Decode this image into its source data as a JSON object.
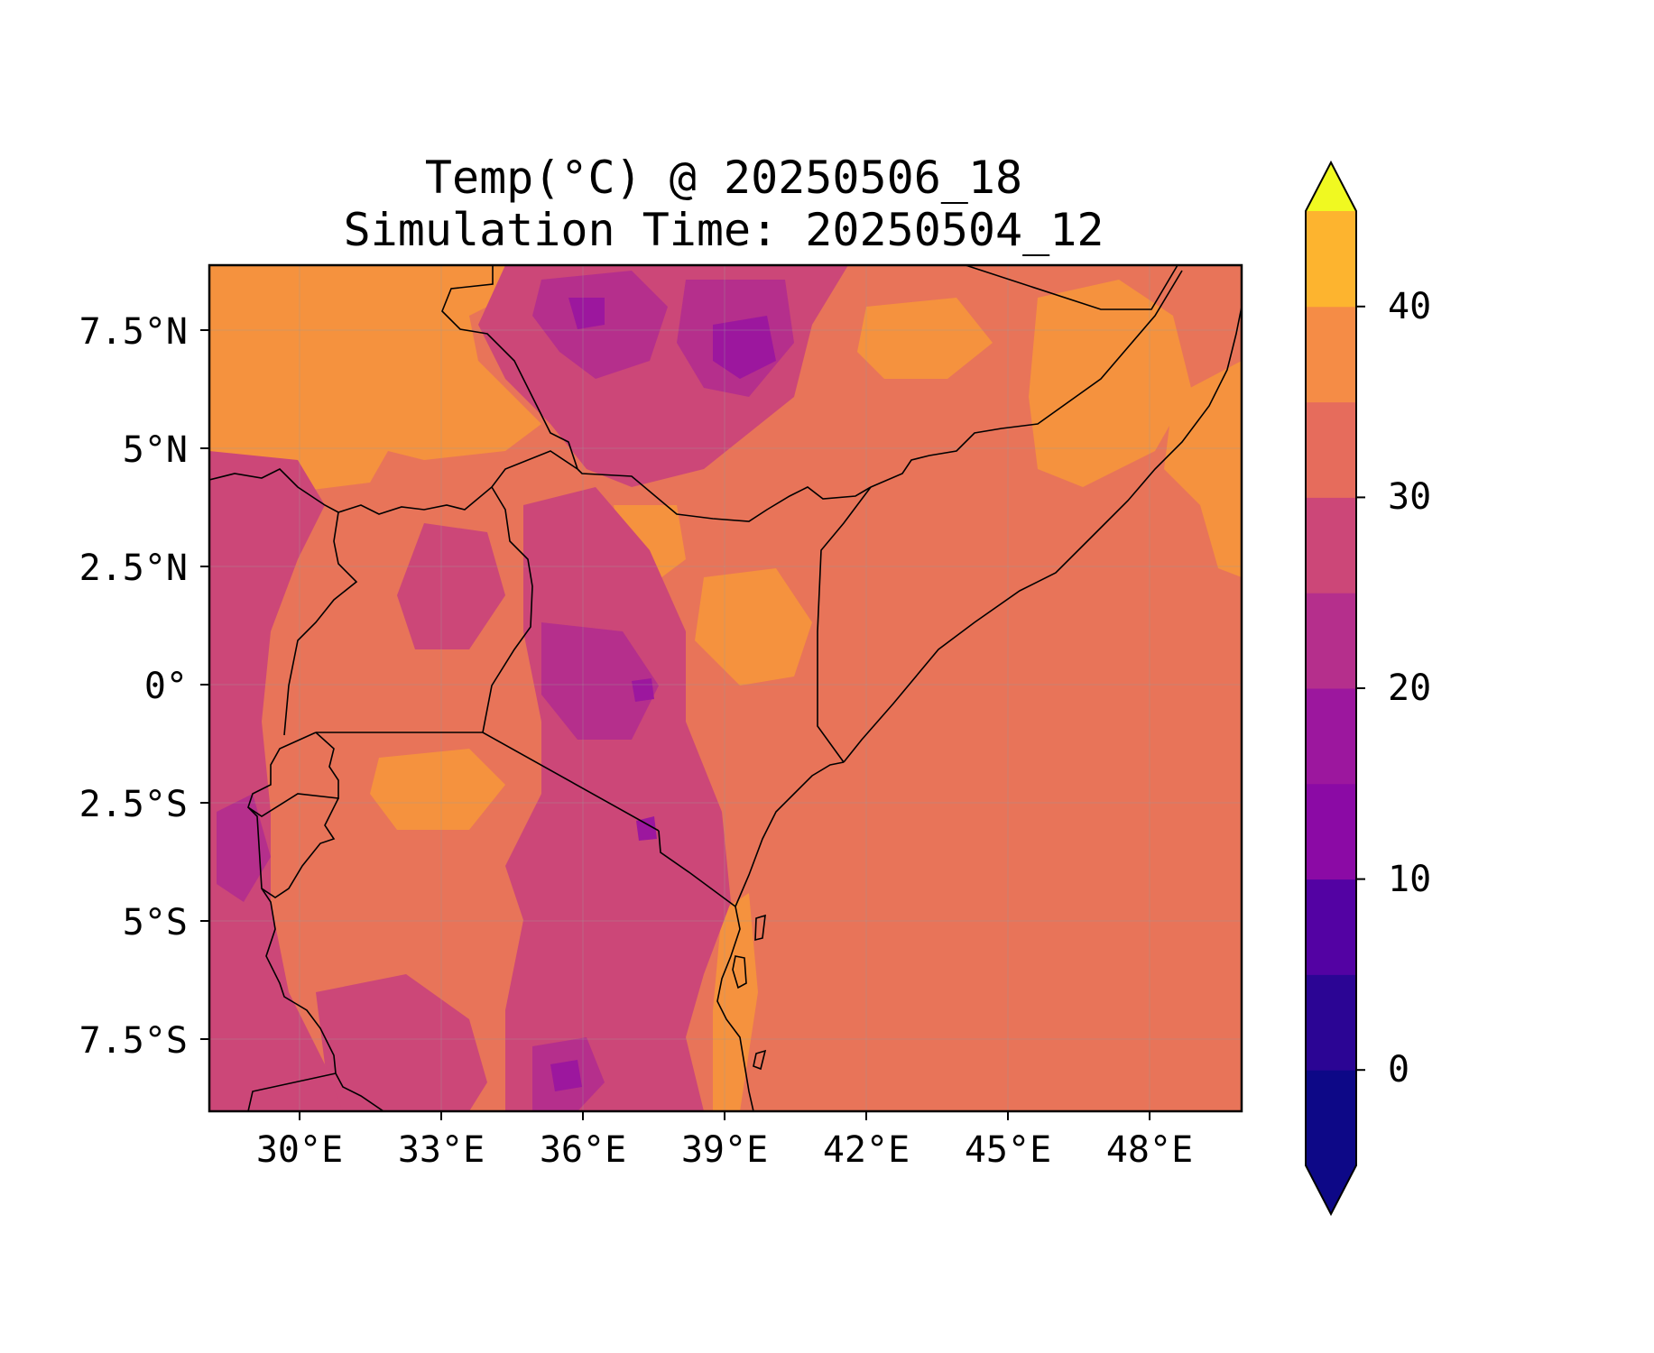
{
  "title_line1": "Temp(°C) @ 20250506_18",
  "title_line2": "Simulation Time: 20250504_12",
  "lat_ticks": [
    "7.5°N",
    "5°N",
    "2.5°N",
    "0°",
    "2.5°S",
    "5°S",
    "7.5°S"
  ],
  "lon_ticks": [
    "30°E",
    "33°E",
    "36°E",
    "39°E",
    "42°E",
    "45°E",
    "48°E"
  ],
  "colorbar": {
    "ticks": [
      "0",
      "10",
      "20",
      "30",
      "40"
    ],
    "levels": [
      -5,
      0,
      5,
      10,
      15,
      20,
      25,
      30,
      35,
      40,
      45
    ],
    "colors": [
      "#0d0887",
      "#2b0594",
      "#5302a3",
      "#8b0aa5",
      "#9c179e",
      "#b52f8c",
      "#cc4778",
      "#e66c5c",
      "#f58c46",
      "#fdb42f",
      "#f0f921"
    ],
    "extend": "both",
    "under_color": "#0d0887",
    "over_color": "#f0f921"
  },
  "map": {
    "lon_range": [
      28,
      50
    ],
    "lat_range": [
      -9,
      9
    ],
    "ocean_color": "#e87459",
    "gridlines": true
  }
}
